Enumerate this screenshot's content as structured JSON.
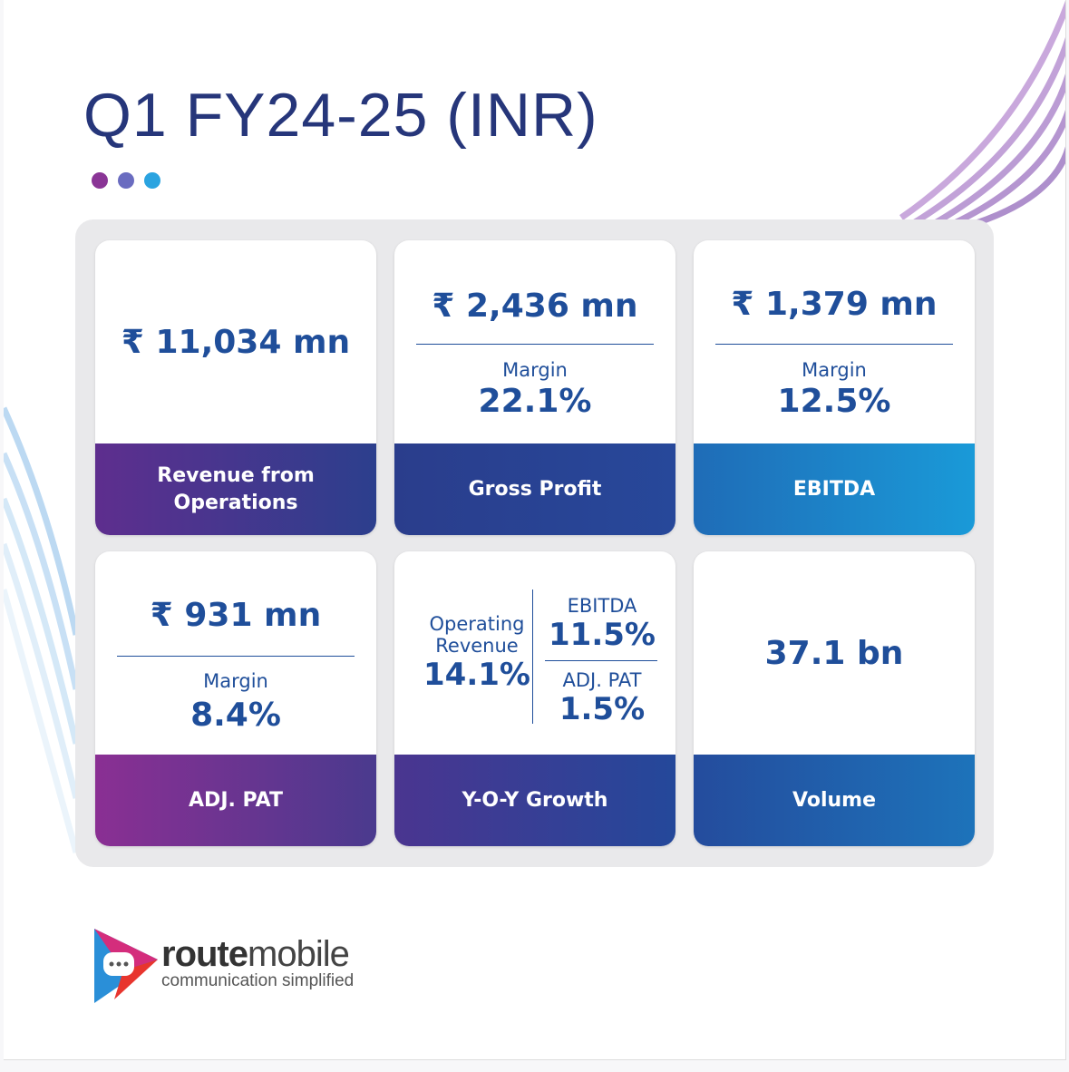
{
  "header": {
    "title": "Q1 FY24-25 (INR)"
  },
  "cards": [
    {
      "value": "₹ 11,034 mn",
      "label": "Revenue from Operations"
    },
    {
      "value": "₹ 2,436 mn",
      "margin_label": "Margin",
      "margin": "22.1%",
      "label": "Gross Profit"
    },
    {
      "value": "₹ 1,379 mn",
      "margin_label": "Margin",
      "margin": "12.5%",
      "label": "EBITDA"
    },
    {
      "value": "₹ 931 mn",
      "margin_label": "Margin",
      "margin": "8.4%",
      "label": "ADJ. PAT"
    },
    {
      "growth": [
        {
          "name": "Operating Revenue",
          "value": "14.1%"
        },
        {
          "name": "EBITDA",
          "value": "11.5%"
        },
        {
          "name": "ADJ. PAT",
          "value": "1.5%"
        }
      ],
      "label": "Y-O-Y Growth"
    },
    {
      "value": "37.1 bn",
      "label": "Volume"
    }
  ],
  "logo": {
    "brand_bold": "route",
    "brand_light": "mobile",
    "tagline": "communication simplified"
  }
}
